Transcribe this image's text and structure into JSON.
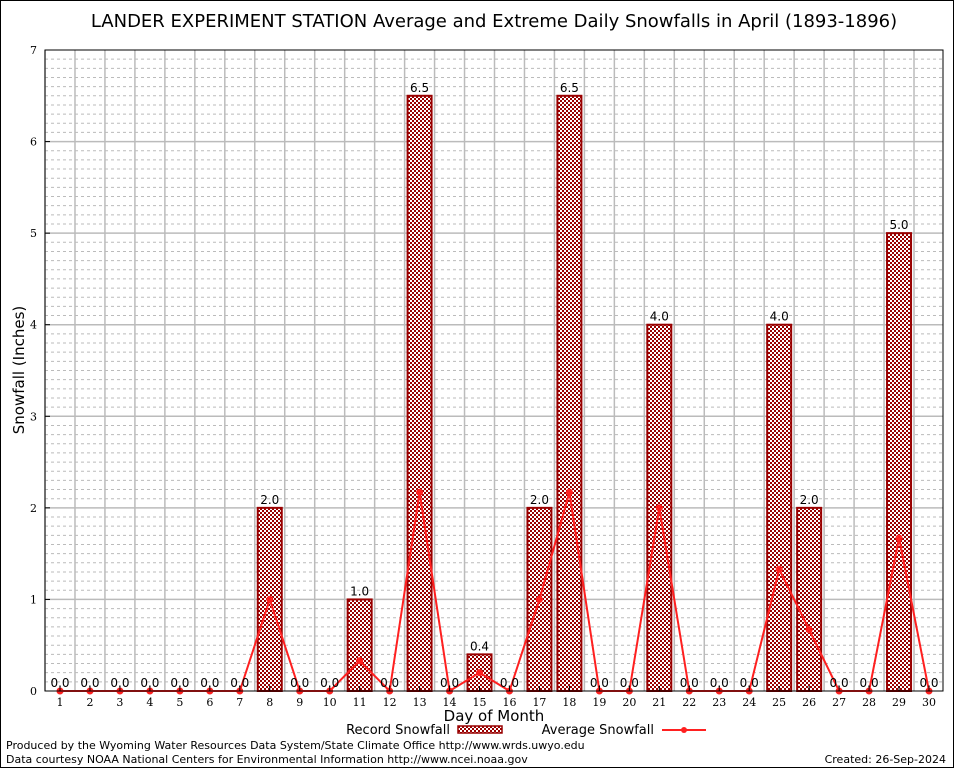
{
  "chart_data": {
    "type": "bar",
    "title": "LANDER EXPERIMENT STATION Average and Extreme Daily Snowfalls in April (1893-1896)",
    "xlabel": "Day of Month",
    "ylabel": "Snowfall (Inches)",
    "ylim": [
      0,
      7
    ],
    "yticks": [
      "0",
      "1",
      "2",
      "3",
      "4",
      "5",
      "6",
      "7"
    ],
    "categories": [
      "1",
      "2",
      "3",
      "4",
      "5",
      "6",
      "7",
      "8",
      "9",
      "10",
      "11",
      "12",
      "13",
      "14",
      "15",
      "16",
      "17",
      "18",
      "19",
      "20",
      "21",
      "22",
      "23",
      "24",
      "25",
      "26",
      "27",
      "28",
      "29",
      "30"
    ],
    "grid": true,
    "legend_position": "bottom",
    "series": [
      {
        "name": "Record Snowfall",
        "type": "bar",
        "color": "#990000",
        "values": [
          0,
          0,
          0,
          0,
          0,
          0,
          0,
          2,
          0,
          0,
          1,
          0,
          6.5,
          0,
          0.4,
          0,
          2,
          6.5,
          0,
          0,
          4,
          0,
          0,
          0,
          4,
          2,
          0,
          0,
          5,
          0
        ],
        "labels": [
          "0.0",
          "0.0",
          "0.0",
          "0.0",
          "0.0",
          "0.0",
          "0.0",
          "2.0",
          "0.0",
          "0.0",
          "1.0",
          "0.0",
          "6.5",
          "0.0",
          "0.4",
          "0.0",
          "2.0",
          "6.5",
          "0.0",
          "0.0",
          "4.0",
          "0.0",
          "0.0",
          "0.0",
          "4.0",
          "2.0",
          "0.0",
          "0.0",
          "5.0",
          "0.0"
        ]
      },
      {
        "name": "Average Snowfall",
        "type": "line",
        "color": "#ff2020",
        "values": [
          0,
          0,
          0,
          0,
          0,
          0,
          0,
          1.0,
          0,
          0,
          0.33,
          0,
          2.17,
          0,
          0.2,
          0,
          1.0,
          2.17,
          0,
          0,
          2.0,
          0,
          0,
          0,
          1.33,
          0.67,
          0,
          0,
          1.67,
          0
        ]
      }
    ]
  },
  "footer": {
    "produced_by": "Produced by the Wyoming Water Resources Data System/State Climate Office http://www.wrds.uwyo.edu",
    "courtesy": "Data courtesy NOAA National Centers for Environmental Information http://www.ncei.noaa.gov",
    "created": "Created: 26-Sep-2024"
  }
}
